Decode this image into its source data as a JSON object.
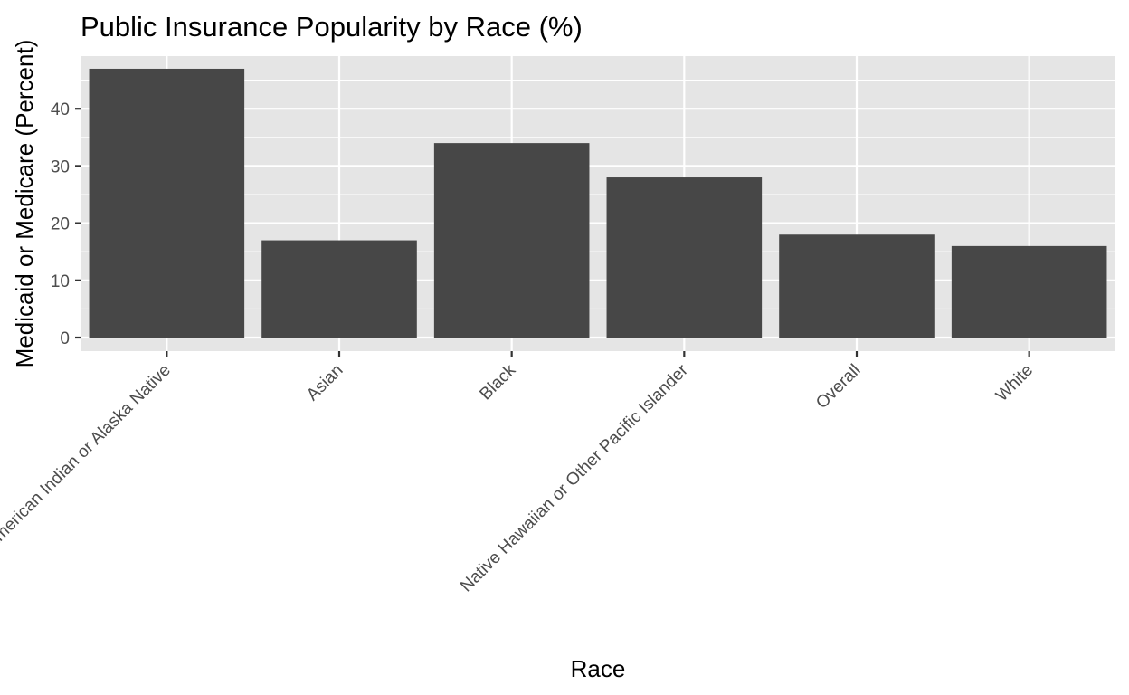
{
  "chart_data": {
    "type": "bar",
    "title": "Public Insurance Popularity by Race (%)",
    "xlabel": "Race",
    "ylabel": "Medicaid or Medicare (Percent)",
    "categories": [
      "American Indian or Alaska Native",
      "Asian",
      "Black",
      "Native Hawaiian or Other Pacific Islander",
      "Overall",
      "White"
    ],
    "values": [
      47,
      17,
      34,
      28,
      18,
      16
    ],
    "ylim": [
      0,
      49
    ],
    "yticks": [
      0,
      10,
      20,
      30,
      40
    ],
    "ytick_labels": [
      "0",
      "10",
      "20",
      "30",
      "40"
    ],
    "grid": true,
    "legend": "none",
    "colors": {
      "bar": "#474747",
      "panel": "#e5e5e5",
      "grid": "#ffffff"
    }
  }
}
